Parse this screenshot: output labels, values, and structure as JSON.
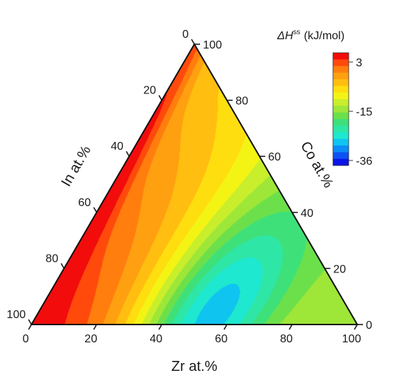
{
  "chart_data": {
    "type": "heatmap",
    "subtype": "ternary-contour",
    "title": "",
    "legend": {
      "title_symbol": "ΔH",
      "title_superscript": "ss",
      "title_unit": "(kJ/mol)",
      "placement": "top-right",
      "ticks": [
        "3",
        "-15",
        "-36"
      ],
      "range": [
        -36,
        3
      ],
      "colors": [
        "#0b14e6",
        "#0c52f2",
        "#0c8cf7",
        "#10c4f0",
        "#1ee8d0",
        "#2ee6a6",
        "#3ee07a",
        "#6ce04a",
        "#9ee638",
        "#c8ee2c",
        "#f4f414",
        "#ffde10",
        "#ffbe10",
        "#ffa010",
        "#ff7e0e",
        "#ff4a0c",
        "#f20c0c"
      ]
    },
    "axes": {
      "bottom": {
        "label": "Zr at.%",
        "ticks": [
          "0",
          "20",
          "40",
          "60",
          "80",
          "100"
        ]
      },
      "right": {
        "label": "Co at.%",
        "ticks": [
          "0",
          "20",
          "40",
          "60",
          "80",
          "100"
        ]
      },
      "left": {
        "label": "In at.%",
        "ticks": [
          "0",
          "20",
          "40",
          "60",
          "80",
          "100"
        ]
      }
    },
    "features": {
      "minimum": {
        "Zr": 52,
        "Co": 0,
        "In": 48,
        "value": -36
      },
      "maximum_edge": "Zr = 0 (Co–In binary)",
      "maximum_value": 3
    }
  }
}
